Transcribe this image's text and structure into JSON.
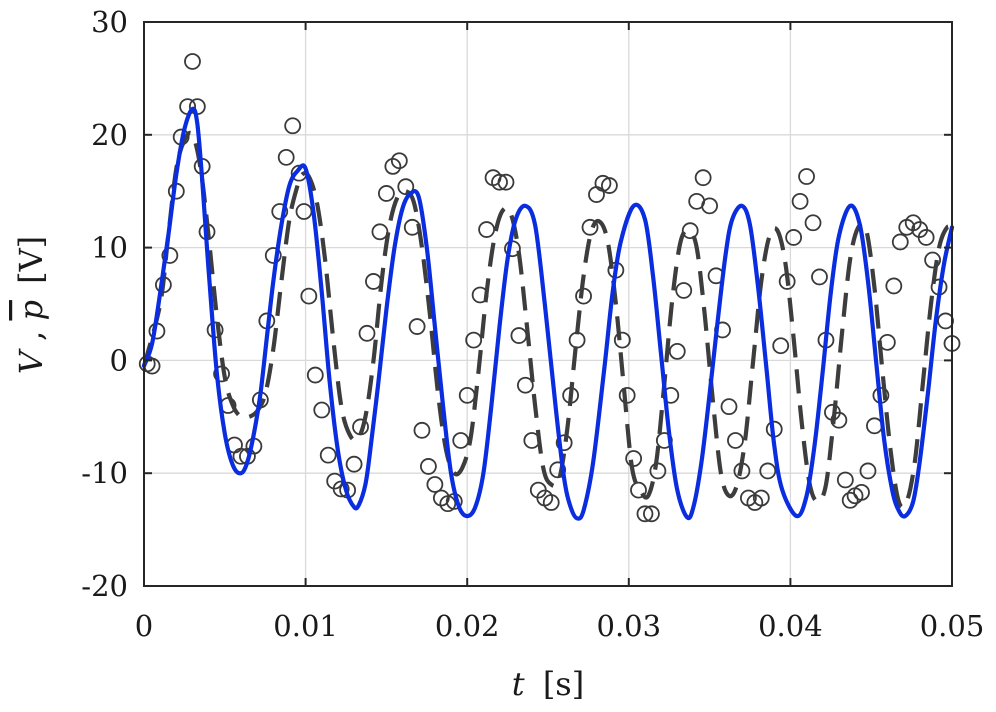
{
  "chart_data": {
    "type": "line",
    "xlabel_var": "t",
    "xlabel_unit": "[s]",
    "ylabel_v": "V",
    "ylabel_sep": ", ",
    "ylabel_p": "p",
    "ylabel_unit": "[V]",
    "xlim": [
      0,
      0.05
    ],
    "ylim": [
      -20,
      30
    ],
    "xticks": [
      0,
      0.01,
      0.02,
      0.03,
      0.04,
      0.05
    ],
    "xtick_labels": [
      "0",
      "0.01",
      "0.02",
      "0.03",
      "0.04",
      "0.05"
    ],
    "yticks": [
      -20,
      -10,
      0,
      10,
      20,
      30
    ],
    "ytick_labels": [
      "-20",
      "-10",
      "0",
      "10",
      "20",
      "30"
    ],
    "grid": true,
    "legend": "none",
    "colors": {
      "solid": "#0a2de0",
      "dashed": "#3d3d3d",
      "markers": "#3a3a3a"
    },
    "series": [
      {
        "style": "solid",
        "x": [
          0,
          0.0005,
          0.001,
          0.0015,
          0.002,
          0.0025,
          0.003,
          0.0033,
          0.0036,
          0.004,
          0.0045,
          0.005,
          0.0055,
          0.006,
          0.0064,
          0.0068,
          0.0072,
          0.0076,
          0.008,
          0.0085,
          0.009,
          0.0095,
          0.01,
          0.0105,
          0.011,
          0.0115,
          0.012,
          0.0125,
          0.013,
          0.0133,
          0.0137,
          0.014,
          0.0145,
          0.015,
          0.0155,
          0.016,
          0.0165,
          0.017,
          0.0175,
          0.018,
          0.0185,
          0.019,
          0.0195,
          0.02,
          0.0205,
          0.021,
          0.0215,
          0.022,
          0.0225,
          0.023,
          0.0236,
          0.0242,
          0.0248,
          0.0255,
          0.026,
          0.0264,
          0.0268,
          0.0272,
          0.0278,
          0.0285,
          0.029,
          0.0295,
          0.0303,
          0.031,
          0.0315,
          0.032,
          0.0325,
          0.033,
          0.0336,
          0.034,
          0.0345,
          0.035,
          0.0355,
          0.036,
          0.0364,
          0.037,
          0.0375,
          0.038,
          0.0385,
          0.039,
          0.0395,
          0.0404,
          0.041,
          0.0415,
          0.042,
          0.0425,
          0.043,
          0.0437,
          0.0443,
          0.0448,
          0.0453,
          0.0458,
          0.0463,
          0.0467,
          0.0471,
          0.0476,
          0.048,
          0.0485,
          0.049,
          0.0495,
          0.05
        ],
        "y": [
          -0.5,
          1.5,
          6,
          11,
          16.5,
          20.5,
          22.3,
          21,
          16,
          8,
          -1,
          -6.5,
          -9.3,
          -10,
          -9,
          -6.5,
          -3,
          2,
          7,
          12,
          15.5,
          16.8,
          17,
          13,
          6,
          -2,
          -8,
          -11.5,
          -13,
          -12.8,
          -11,
          -8,
          -2,
          4.5,
          10,
          13.5,
          14.8,
          14.5,
          10,
          3,
          -4,
          -10,
          -13,
          -13.8,
          -13,
          -10,
          -4,
          3,
          9,
          12.5,
          13.7,
          12,
          5,
          -4.5,
          -10.5,
          -13,
          -14,
          -13.3,
          -9,
          -0.5,
          6,
          10.5,
          13.7,
          12.5,
          7.5,
          0.5,
          -6.5,
          -11.5,
          -13.9,
          -13,
          -9,
          -3,
          3.5,
          9.5,
          12.5,
          13.7,
          12,
          6.5,
          -0.5,
          -7.5,
          -11.5,
          -13.8,
          -12,
          -7.5,
          -1,
          6,
          11,
          13.7,
          12,
          7,
          0,
          -7,
          -11.5,
          -13.3,
          -13.8,
          -12.5,
          -9,
          -3,
          3.5,
          8.5,
          11.8
        ]
      },
      {
        "style": "dashed",
        "x": [
          0,
          0.001,
          0.0015,
          0.002,
          0.0025,
          0.003,
          0.0035,
          0.004,
          0.0045,
          0.005,
          0.0055,
          0.006,
          0.0065,
          0.007,
          0.0075,
          0.008,
          0.0085,
          0.009,
          0.0095,
          0.0098,
          0.0102,
          0.0107,
          0.0112,
          0.0117,
          0.0122,
          0.0127,
          0.0132,
          0.0137,
          0.0142,
          0.0147,
          0.0152,
          0.0157,
          0.0162,
          0.0167,
          0.0172,
          0.0177,
          0.0182,
          0.0187,
          0.0192,
          0.0197,
          0.0202,
          0.0207,
          0.0212,
          0.0217,
          0.0222,
          0.0227,
          0.0232,
          0.0237,
          0.0242,
          0.0247,
          0.0252,
          0.0257,
          0.0262,
          0.0267,
          0.0272,
          0.0277,
          0.0282,
          0.0287,
          0.0292,
          0.0297,
          0.0302,
          0.0307,
          0.0312,
          0.0317,
          0.0322,
          0.0327,
          0.0332,
          0.0337,
          0.0342,
          0.0347,
          0.0352,
          0.0357,
          0.0362,
          0.0367,
          0.0372,
          0.0377,
          0.0382,
          0.0387,
          0.0392,
          0.0397,
          0.0402,
          0.0407,
          0.0412,
          0.0417,
          0.0422,
          0.0427,
          0.0432,
          0.0437,
          0.0442,
          0.0447,
          0.0452,
          0.0457,
          0.0462,
          0.0467,
          0.0472,
          0.0477,
          0.0482,
          0.0487,
          0.0492,
          0.0497,
          0.05
        ],
        "y": [
          -0.5,
          5,
          11,
          17,
          19.5,
          20,
          17,
          11,
          4,
          -1.5,
          -4,
          -5,
          -5,
          -4.5,
          -3,
          1,
          7,
          12.5,
          15.5,
          16.5,
          16.3,
          14,
          9,
          2,
          -4,
          -6.5,
          -7,
          -5,
          0,
          7,
          12,
          14.5,
          15,
          14,
          10,
          4,
          -3,
          -8,
          -10,
          -9.5,
          -7,
          -1,
          6,
          11,
          13.3,
          13,
          9.5,
          3,
          -4,
          -9.5,
          -11,
          -10.5,
          -6,
          1,
          7.5,
          11.5,
          12.3,
          10.5,
          5,
          -2.5,
          -9.5,
          -11.5,
          -12,
          -9,
          -2,
          5.5,
          10.5,
          11.5,
          10,
          4,
          -3.5,
          -10,
          -12,
          -11,
          -7,
          0,
          7,
          11,
          11.5,
          8.5,
          2,
          -5.5,
          -11,
          -12.5,
          -11,
          -5,
          2.5,
          9,
          11.8,
          11.5,
          6.5,
          -1,
          -8,
          -12.5,
          -12.5,
          -9,
          -2,
          5,
          10,
          11.8,
          11.5
        ]
      },
      {
        "style": "circles",
        "x": [
          0.0002,
          0.0005,
          0.0008,
          0.0012,
          0.0016,
          0.002,
          0.0023,
          0.0027,
          0.003,
          0.0033,
          0.0036,
          0.0039,
          0.0044,
          0.0048,
          0.0052,
          0.0056,
          0.006,
          0.0064,
          0.0068,
          0.0072,
          0.0076,
          0.008,
          0.0084,
          0.0088,
          0.0092,
          0.0096,
          0.0099,
          0.0102,
          0.0106,
          0.011,
          0.0114,
          0.0118,
          0.0122,
          0.0126,
          0.013,
          0.0134,
          0.0138,
          0.0142,
          0.0146,
          0.015,
          0.0154,
          0.0158,
          0.0162,
          0.0166,
          0.0169,
          0.0172,
          0.0176,
          0.018,
          0.0184,
          0.0188,
          0.0192,
          0.0196,
          0.02,
          0.0204,
          0.0208,
          0.0212,
          0.0216,
          0.022,
          0.0224,
          0.0228,
          0.0232,
          0.0236,
          0.024,
          0.0244,
          0.0248,
          0.0252,
          0.0256,
          0.026,
          0.0264,
          0.0268,
          0.0272,
          0.0276,
          0.028,
          0.0284,
          0.0288,
          0.0292,
          0.0296,
          0.0299,
          0.0303,
          0.0306,
          0.031,
          0.0314,
          0.0318,
          0.0322,
          0.0326,
          0.033,
          0.0334,
          0.0338,
          0.0342,
          0.0346,
          0.035,
          0.0354,
          0.0358,
          0.0362,
          0.0366,
          0.037,
          0.0374,
          0.0378,
          0.0382,
          0.0386,
          0.039,
          0.0394,
          0.0398,
          0.0402,
          0.0406,
          0.041,
          0.0414,
          0.0418,
          0.0422,
          0.0426,
          0.043,
          0.0434,
          0.0437,
          0.044,
          0.0444,
          0.0448,
          0.0452,
          0.0456,
          0.046,
          0.0464,
          0.0468,
          0.0472,
          0.0476,
          0.048,
          0.0484,
          0.0488,
          0.0492,
          0.0496,
          0.05
        ],
        "y": [
          -0.3,
          -0.5,
          2.6,
          6.7,
          9.3,
          15,
          19.8,
          22.5,
          26.5,
          22.5,
          17.2,
          11.4,
          2.7,
          -1.2,
          -4,
          -7.5,
          -8.5,
          -8.5,
          -7.6,
          -3.5,
          3.5,
          9.3,
          13.2,
          18,
          20.8,
          16.6,
          13.2,
          5.7,
          -1.3,
          -4.4,
          -8.4,
          -10.7,
          -11.4,
          -11.5,
          -9.2,
          -5.9,
          2.4,
          7,
          11.4,
          14.8,
          17.2,
          17.7,
          15.4,
          11.8,
          3,
          -6.2,
          -9.4,
          -11,
          -12.2,
          -12.7,
          -12.5,
          -7.1,
          -3.1,
          1.8,
          5.8,
          11.6,
          16.2,
          15.8,
          15.8,
          9.9,
          2.2,
          -2.2,
          -7.1,
          -11.5,
          -12.2,
          -12.6,
          -9.7,
          -7.3,
          -3.1,
          1.8,
          5.7,
          11.8,
          14.7,
          15.7,
          15.5,
          8,
          1.8,
          -3.1,
          -8.7,
          -11.5,
          -13.6,
          -13.6,
          -9.8,
          -7.1,
          -3.1,
          0.8,
          6.2,
          11.5,
          14.1,
          16.2,
          13.7,
          7.5,
          2.7,
          -4.1,
          -7.1,
          -9.8,
          -12.2,
          -12.6,
          -12.2,
          -9.8,
          -6.1,
          1.3,
          7,
          10.9,
          14.1,
          16.3,
          12.2,
          7.4,
          1.8,
          -4.6,
          -5.3,
          -10.6,
          -12.4,
          -12,
          -11.7,
          -9.8,
          -5.8,
          -3.1,
          1.6,
          6.6,
          10.5,
          11.8,
          12.2,
          11.6,
          10.9,
          8.9,
          6.5,
          3.5,
          1.5
        ]
      }
    ]
  }
}
